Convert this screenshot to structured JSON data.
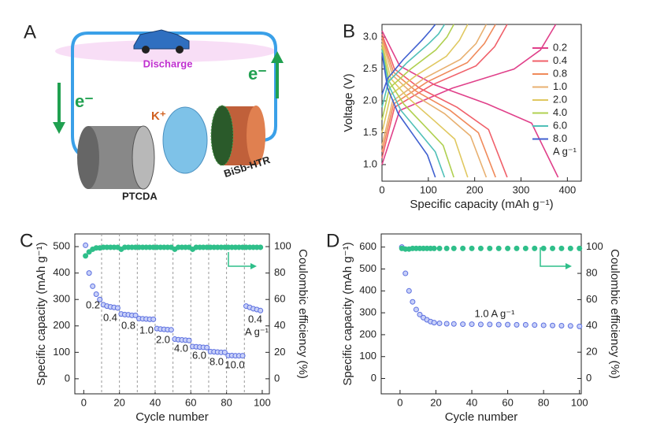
{
  "diagram": {
    "panel": "A",
    "discharge": "Discharge",
    "e_left": "e⁻",
    "e_right": "e⁻",
    "ion": "K⁺",
    "cathode": "PTCDA",
    "anode": "BiSb-HTR"
  },
  "chart_data": [
    {
      "type": "line",
      "panel": "B",
      "x_label": "Specific capacity (mAh g⁻¹)",
      "y_label": "Voltage (V)",
      "xlim": [
        0,
        430
      ],
      "xticks": [
        0,
        100,
        200,
        300,
        400
      ],
      "ylim": [
        0.74,
        3.2
      ],
      "yticks": [
        {
          "value": 1,
          "label": "1.0"
        },
        {
          "value": 1.5,
          "label": "1.5"
        },
        {
          "value": 2,
          "label": "2.0"
        },
        {
          "value": 2.5,
          "label": "2.5"
        },
        {
          "value": 3,
          "label": "3.0"
        }
      ],
      "legend": "right",
      "legend_title": "A g⁻¹",
      "series": [
        {
          "name": "0.2",
          "color": "#e0408a",
          "x": [
            0,
            38,
            114,
            228,
            323,
            380,
            null,
            0,
            38,
            152,
            285,
            342,
            375
          ],
          "values": [
            3.1,
            2.55,
            2.25,
            1.95,
            1.65,
            0.8,
            null,
            1.0,
            1.85,
            2.2,
            2.5,
            2.8,
            3.2
          ]
        },
        {
          "name": "0.4",
          "color": "#f0606a",
          "x": [
            0,
            27,
            81,
            162,
            230,
            270,
            null,
            0,
            27,
            108,
            203,
            243,
            270
          ],
          "values": [
            3.05,
            2.5,
            2.2,
            1.9,
            1.55,
            0.8,
            null,
            1.1,
            1.9,
            2.25,
            2.55,
            2.85,
            3.2
          ]
        },
        {
          "name": "0.8",
          "color": "#f08a5a",
          "x": [
            0,
            25,
            74,
            147,
            208,
            245,
            null,
            0,
            25,
            98,
            184,
            221,
            245
          ],
          "values": [
            3.0,
            2.45,
            2.15,
            1.85,
            1.5,
            0.8,
            null,
            1.2,
            1.95,
            2.3,
            2.6,
            2.9,
            3.2
          ]
        },
        {
          "name": "1.0",
          "color": "#e8b070",
          "x": [
            0,
            23,
            68,
            135,
            191,
            225,
            null,
            0,
            23,
            90,
            169,
            203,
            225
          ],
          "values": [
            2.95,
            2.4,
            2.1,
            1.8,
            1.45,
            0.8,
            null,
            1.3,
            2.0,
            2.35,
            2.65,
            2.9,
            3.2
          ]
        },
        {
          "name": "2.0",
          "color": "#e0c860",
          "x": [
            0,
            19,
            56,
            111,
            157,
            185,
            null,
            0,
            19,
            74,
            139,
            167,
            185
          ],
          "values": [
            2.9,
            2.35,
            2.05,
            1.7,
            1.4,
            0.8,
            null,
            1.5,
            2.1,
            2.4,
            2.7,
            2.95,
            3.2
          ]
        },
        {
          "name": "4.0",
          "color": "#b0d050",
          "x": [
            0,
            16,
            47,
            93,
            132,
            155,
            null,
            0,
            16,
            62,
            116,
            140,
            155
          ],
          "values": [
            2.85,
            2.3,
            1.95,
            1.6,
            1.3,
            0.8,
            null,
            1.7,
            2.2,
            2.5,
            2.8,
            3.0,
            3.2
          ]
        },
        {
          "name": "6.0",
          "color": "#50c0b8",
          "x": [
            0,
            14,
            41,
            81,
            115,
            135,
            null,
            0,
            14,
            54,
            101,
            122,
            135
          ],
          "values": [
            2.8,
            2.25,
            1.85,
            1.5,
            1.2,
            0.8,
            null,
            1.9,
            2.3,
            2.6,
            2.9,
            3.05,
            3.2
          ]
        },
        {
          "name": "8.0",
          "color": "#4060d0",
          "x": [
            0,
            12,
            35,
            69,
            98,
            115,
            null,
            0,
            12,
            46,
            86,
            104,
            115
          ],
          "values": [
            2.75,
            2.2,
            1.8,
            1.45,
            1.15,
            0.8,
            null,
            2.1,
            2.35,
            2.65,
            2.95,
            3.1,
            3.2
          ]
        }
      ]
    },
    {
      "type": "scatter",
      "panel": "C",
      "x_label": "Cycle number",
      "y_label": "Specific capacity (mAh g⁻¹)",
      "y2_label": "Coulombic efficiency (%)",
      "xlim": [
        -5,
        104
      ],
      "xticks": [
        0,
        20,
        40,
        60,
        80,
        100
      ],
      "ylim": [
        -57,
        548
      ],
      "yticks": [
        0,
        100,
        200,
        300,
        400,
        500
      ],
      "y2lim": [
        -11.4,
        109.6
      ],
      "y2ticks": [
        0,
        20,
        40,
        60,
        80,
        100
      ],
      "dividers": [
        10,
        20,
        30,
        40,
        50,
        60,
        70,
        80,
        90
      ],
      "annotations": [
        "0.2",
        "0.4",
        "0.8",
        "1.0",
        "2.0",
        "4.0",
        "6.0",
        "8.0",
        "10.0",
        "0.4",
        "A g⁻¹"
      ],
      "x": [
        1,
        3,
        5,
        7,
        9,
        11,
        13,
        15,
        17,
        19,
        21,
        23,
        25,
        27,
        29,
        31,
        33,
        35,
        37,
        39,
        41,
        43,
        45,
        47,
        49,
        51,
        53,
        55,
        57,
        59,
        61,
        63,
        65,
        67,
        69,
        71,
        73,
        75,
        77,
        79,
        81,
        83,
        85,
        87,
        89,
        91,
        93,
        95,
        97,
        99
      ],
      "series": [
        {
          "color": "#5b6fe0",
          "values": [
            505,
            400,
            350,
            320,
            300,
            280,
            275,
            272,
            270,
            268,
            245,
            243,
            242,
            240,
            240,
            228,
            227,
            226,
            225,
            225,
            190,
            188,
            187,
            186,
            185,
            150,
            148,
            147,
            146,
            145,
            122,
            121,
            120,
            119,
            118,
            103,
            102,
            101,
            100,
            100,
            88,
            88,
            87,
            87,
            87,
            275,
            270,
            265,
            262,
            258
          ]
        },
        {
          "color": "#2fbf8a",
          "axis": "y2",
          "values": [
            93,
            96,
            98,
            99,
            99,
            99.5,
            99.5,
            99.5,
            99.5,
            99.5,
            98,
            99.5,
            99.5,
            99.5,
            99.5,
            99.5,
            99.5,
            99.5,
            99.5,
            99.5,
            99.5,
            99.5,
            99.5,
            99.5,
            99.5,
            98,
            99.5,
            99.5,
            99.5,
            99.5,
            98,
            99.5,
            99.5,
            99.5,
            99.5,
            99.5,
            99.5,
            99.5,
            99.5,
            99.5,
            99.5,
            99.5,
            99.5,
            99.5,
            99.5,
            99.5,
            99.5,
            99.5,
            99.5,
            99.5
          ]
        }
      ]
    },
    {
      "type": "scatter",
      "panel": "D",
      "x_label": "Cycle number",
      "y_label": "Specific capacity (mAh g⁻¹)",
      "y2_label": "Coulombic efficiency (%)",
      "xlim": [
        -10.5,
        101
      ],
      "xticks": [
        0,
        20,
        40,
        60,
        80,
        100
      ],
      "ylim": [
        -70,
        660
      ],
      "yticks": [
        0,
        100,
        200,
        300,
        400,
        500,
        600
      ],
      "y2lim": [
        -11.667,
        110
      ],
      "y2ticks": [
        0,
        20,
        40,
        60,
        80,
        100
      ],
      "annotations": [
        "1.0 A g⁻¹"
      ],
      "x": [
        1,
        3,
        5,
        7,
        9,
        11,
        13,
        15,
        17,
        19,
        22,
        26,
        30,
        35,
        40,
        45,
        50,
        55,
        60,
        65,
        70,
        75,
        80,
        85,
        90,
        95,
        100
      ],
      "series": [
        {
          "color": "#5b6fe0",
          "values": [
            600,
            480,
            400,
            350,
            315,
            292,
            278,
            268,
            260,
            255,
            252,
            250,
            249,
            248,
            248,
            247,
            247,
            246,
            246,
            245,
            245,
            244,
            243,
            242,
            241,
            240,
            238
          ]
        },
        {
          "color": "#2fbf8a",
          "axis": "y2",
          "values": [
            99,
            98.5,
            98.5,
            99,
            99,
            99,
            99,
            99,
            99,
            99,
            99,
            99,
            99,
            99,
            99,
            99,
            99,
            99,
            99,
            99,
            99,
            99,
            99,
            99,
            99,
            99,
            99
          ]
        }
      ]
    }
  ]
}
